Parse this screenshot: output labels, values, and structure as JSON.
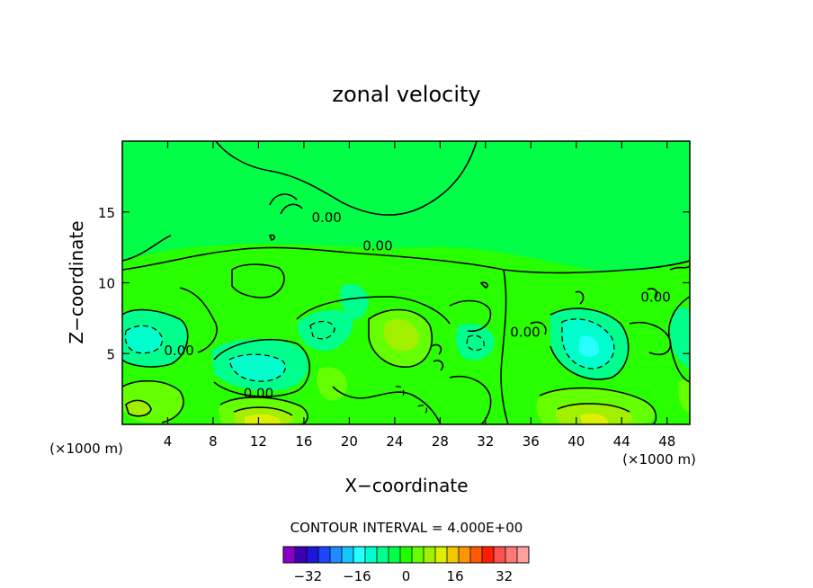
{
  "chart_data": {
    "type": "contour",
    "title": "zonal velocity",
    "xlabel": "X−coordinate",
    "ylabel": "Z−coordinate",
    "x_unit_label": "(×1000 m)",
    "z_unit_label": "(×1000 m)",
    "xlim": [
      0,
      50
    ],
    "ylim": [
      0,
      20
    ],
    "x_ticks": [
      4,
      8,
      12,
      16,
      20,
      24,
      28,
      32,
      36,
      40,
      44,
      48
    ],
    "y_ticks": [
      5,
      10,
      15
    ],
    "contour_interval_text": "CONTOUR INTERVAL = 4.000E+00",
    "contour_labels": [
      {
        "text": "0.00",
        "x": 18,
        "z": 14.6
      },
      {
        "text": "0.00",
        "x": 22.5,
        "z": 12.6
      },
      {
        "text": "0.00",
        "x": 5,
        "z": 5.2
      },
      {
        "text": "0.00",
        "x": 12,
        "z": 2.2
      },
      {
        "text": "0.00",
        "x": 35.5,
        "z": 6.5
      },
      {
        "text": "0.00",
        "x": 47,
        "z": 9.0
      }
    ],
    "features": [
      {
        "kind": "min",
        "x": 1.5,
        "z": 6,
        "level": -16
      },
      {
        "kind": "min",
        "x": 12,
        "z": 4,
        "level": -16
      },
      {
        "kind": "min",
        "x": 17,
        "z": 6.5,
        "level": -8
      },
      {
        "kind": "min",
        "x": 41,
        "z": 5,
        "level": -16
      },
      {
        "kind": "min",
        "x": 31,
        "z": 5.5,
        "level": -8
      },
      {
        "kind": "max",
        "x": 25,
        "z": 6.5,
        "level": 16
      },
      {
        "kind": "max",
        "x": 12,
        "z": 0.5,
        "level": 16
      },
      {
        "kind": "max",
        "x": 40.5,
        "z": 0.5,
        "level": 16
      },
      {
        "kind": "max",
        "x": 1.5,
        "z": 1.3,
        "level": 12
      }
    ],
    "colorbar": {
      "tick_labels": [
        "−32",
        "−16",
        "0",
        "16",
        "32"
      ],
      "tick_values": [
        -32,
        -16,
        0,
        16,
        32
      ],
      "range": [
        -40,
        40
      ],
      "colors": [
        "#8a00c6",
        "#3c00b4",
        "#1e14dc",
        "#1e46ff",
        "#1e8cff",
        "#14c8ff",
        "#28ffff",
        "#00ffcc",
        "#00ff8c",
        "#00ff46",
        "#1eff00",
        "#64ff00",
        "#a0f000",
        "#dcf000",
        "#f0c800",
        "#ff9600",
        "#ff5a00",
        "#ff1e00",
        "#ff5050",
        "#ff7878",
        "#ffa0a0"
      ]
    }
  }
}
